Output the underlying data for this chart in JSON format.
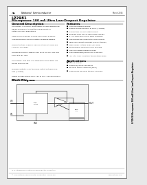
{
  "page_bg": "#e8e8e8",
  "border_color": "#888888",
  "main_bg": "#ffffff",
  "title_text": "LP2981",
  "subtitle_text": "Micropower 100 mA Ultra Low-Dropout Regulator",
  "ns_logo_text": "National  Semiconductor",
  "date_text": "March 2006",
  "side_text": "LP2981 Micropower 100 mA Ultra Low-Dropout Regulator",
  "general_desc_title": "General Description",
  "features_title": "Features",
  "apps_title": "Applications",
  "block_diag_title": "Block Diagram",
  "footer_text": "LT is a trademark of National Semiconductor Corporation",
  "copyright_text": "© 2003 National Semiconductor Corporation   DS011346",
  "website_text": "www.national.com",
  "desc_lines": [
    "The LP2981 is a 100mA, fixed-output voltage regulator de-",
    "signed specifically to meet the requirements of",
    "battery-powered applications.",
    "",
    "Using an advanced BiT process, the LP2981 achieves",
    "unmatched performance in battery-powered designs.",
    "",
    "Dropout Voltage: Typically 350 mV at 100 mA loads and",
    "1 mV at 1 mA loads.",
    "",
    "Ground Pin Current: Typically 450 μA at 100 mA load, and",
    "90 μA at 1 mA load.",
    "",
    "Shunt Mode: Less than 1 μA quiescent current when VIN",
    "DO pin is pulled low.",
    "",
    "Precision Outputs: 0.5% tolerance output voltages avail-",
    "able (A-grade).",
    "",
    "Output voltage options from 2.5V to 5.0V. Also available as",
    "adjustable version."
  ],
  "feat_lines": [
    "■  Ultra low dropout voltage",
    "■  Output voltage accuracy to 0.5% (A-Grade)",
    "■  Guaranteed 100 mA output current",
    "■  Smallest 5-pin SOT-23 micro SMD package",
    "■  0.1 μA quiescent current when shutdown",
    "■  Low ground pin current at all load currents",
    "■  High peak current capability (350 mA typical)",
    "■  Wide supply voltage range (15V max)",
    "■  Fast transient response to line and load",
    "■  Low COUT wide frequency range",
    "■  Overtemperature/overcurrent protection",
    "■  -40°C to +125°C junction temperature range"
  ],
  "app_lines": [
    "■  Cellular Phones",
    "■  Notebook/Laptop Computers",
    "■  Personal Digital Assistants (PDAs)",
    "■  Camcorders, Personal Stereos, Scanners"
  ]
}
